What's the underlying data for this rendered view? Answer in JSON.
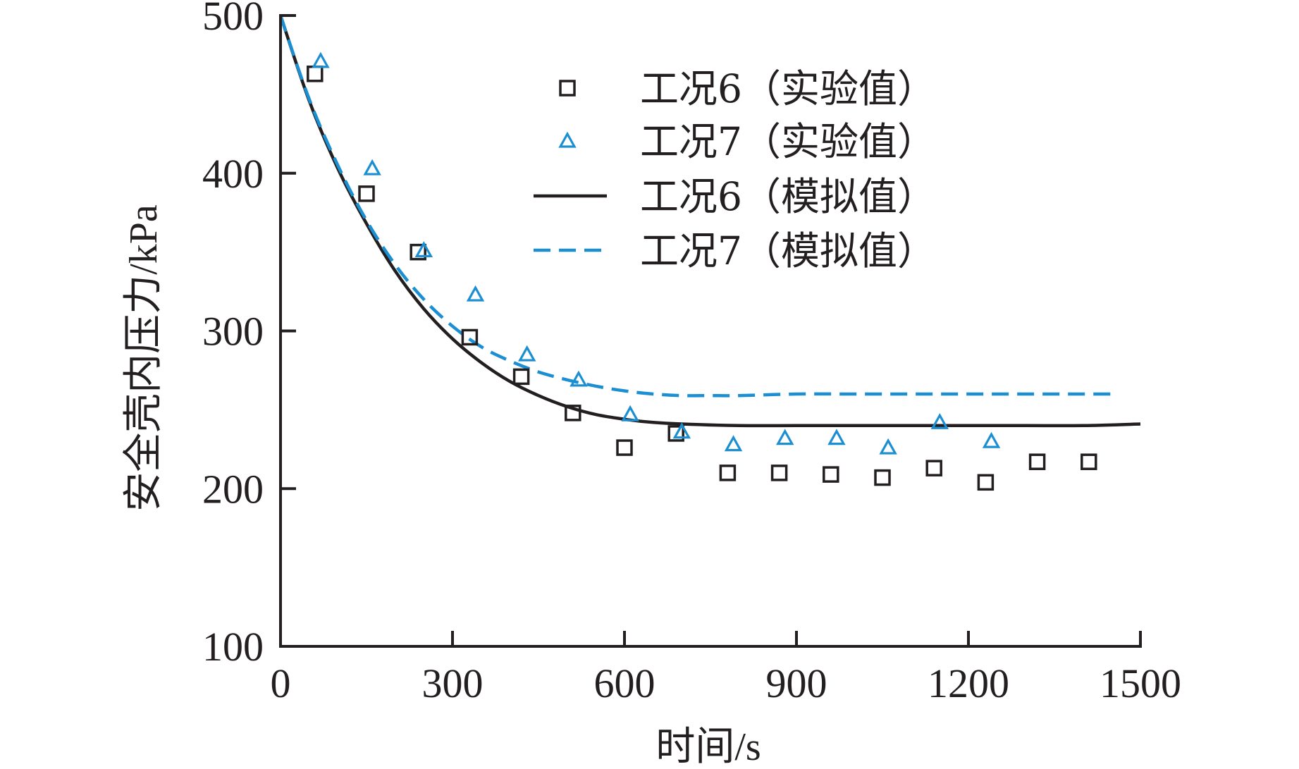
{
  "chart_data": {
    "type": "line",
    "xlabel": "时间/s",
    "ylabel": "安全壳内压力/kPa",
    "xlim": [
      0,
      1500
    ],
    "ylim": [
      100,
      500
    ],
    "xticks": [
      0,
      300,
      600,
      900,
      1200,
      1500
    ],
    "yticks": [
      100,
      200,
      300,
      400,
      500
    ],
    "xtick_labels": [
      "0",
      "300",
      "600",
      "900",
      "1200",
      "1500"
    ],
    "ytick_labels": [
      "100",
      "200",
      "300",
      "400",
      "500"
    ],
    "grid": false,
    "legend_position": "top-right",
    "series": [
      {
        "name": "工况6（实验值）",
        "kind": "scatter",
        "marker": "square",
        "color": "#231f20",
        "x": [
          60,
          150,
          240,
          330,
          420,
          510,
          600,
          690,
          780,
          870,
          960,
          1050,
          1140,
          1230,
          1320,
          1410
        ],
        "y": [
          463,
          387,
          350,
          296,
          271,
          248,
          226,
          235,
          210,
          210,
          209,
          207,
          213,
          204,
          217,
          217
        ]
      },
      {
        "name": "工况7（实验值）",
        "kind": "scatter",
        "marker": "triangle",
        "color": "#1b8fd2",
        "x": [
          70,
          160,
          250,
          340,
          430,
          520,
          610,
          700,
          790,
          880,
          970,
          1060,
          1150,
          1240
        ],
        "y": [
          471,
          403,
          351,
          323,
          285,
          269,
          247,
          236,
          228,
          232,
          232,
          226,
          242,
          230
        ]
      },
      {
        "name": "工况6（模拟值）",
        "kind": "line",
        "style": "solid",
        "color": "#231f20",
        "x": [
          0,
          50,
          100,
          150,
          200,
          250,
          300,
          350,
          400,
          450,
          500,
          550,
          600,
          650,
          700,
          800,
          900,
          1000,
          1100,
          1200,
          1300,
          1400,
          1500
        ],
        "y": [
          500,
          446,
          403,
          368,
          338,
          314,
          295,
          280,
          268,
          259,
          252,
          247,
          244,
          242,
          241,
          240,
          240,
          240,
          240,
          240,
          240,
          240,
          241
        ]
      },
      {
        "name": "工况7（模拟值）",
        "kind": "line",
        "style": "dashed",
        "color": "#1b8fd2",
        "x": [
          0,
          50,
          100,
          150,
          200,
          250,
          300,
          350,
          400,
          450,
          500,
          550,
          600,
          650,
          700,
          750,
          800,
          900,
          1000,
          1100,
          1200,
          1300,
          1450
        ],
        "y": [
          500,
          447,
          405,
          370,
          342,
          320,
          303,
          290,
          281,
          274,
          269,
          265,
          262,
          260,
          259,
          259,
          259,
          260,
          260,
          260,
          260,
          260,
          260
        ]
      }
    ]
  }
}
